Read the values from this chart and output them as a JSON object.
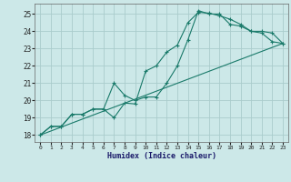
{
  "xlabel": "Humidex (Indice chaleur)",
  "bg_color": "#cce8e8",
  "grid_color": "#aacccc",
  "line_color": "#1a7a6a",
  "xlim": [
    -0.5,
    23.5
  ],
  "ylim": [
    17.6,
    25.6
  ],
  "xticks": [
    0,
    1,
    2,
    3,
    4,
    5,
    6,
    7,
    8,
    9,
    10,
    11,
    12,
    13,
    14,
    15,
    16,
    17,
    18,
    19,
    20,
    21,
    22,
    23
  ],
  "yticks": [
    18,
    19,
    20,
    21,
    22,
    23,
    24,
    25
  ],
  "line1_x": [
    0,
    1,
    2,
    3,
    4,
    5,
    6,
    7,
    8,
    9,
    10,
    11,
    12,
    13,
    14,
    15,
    16,
    17,
    18,
    19,
    20,
    21,
    22,
    23
  ],
  "line1_y": [
    18.0,
    18.5,
    18.5,
    19.2,
    19.2,
    19.5,
    19.5,
    19.0,
    19.85,
    19.8,
    21.7,
    22.0,
    22.8,
    23.2,
    24.5,
    25.1,
    25.05,
    24.9,
    24.7,
    24.4,
    24.0,
    23.9,
    23.4,
    23.3
  ],
  "line2_x": [
    0,
    1,
    2,
    3,
    4,
    5,
    6,
    7,
    8,
    9,
    10,
    11,
    12,
    13,
    14,
    15,
    16,
    17,
    18,
    19,
    20,
    21,
    22,
    23
  ],
  "line2_y": [
    18.0,
    18.5,
    18.5,
    19.2,
    19.2,
    19.5,
    19.5,
    21.0,
    20.3,
    20.0,
    20.2,
    20.2,
    21.0,
    22.0,
    23.5,
    25.2,
    25.0,
    25.0,
    24.4,
    24.3,
    24.0,
    24.0,
    23.9,
    23.3
  ],
  "line3_x": [
    0,
    23
  ],
  "line3_y": [
    18.0,
    23.3
  ]
}
